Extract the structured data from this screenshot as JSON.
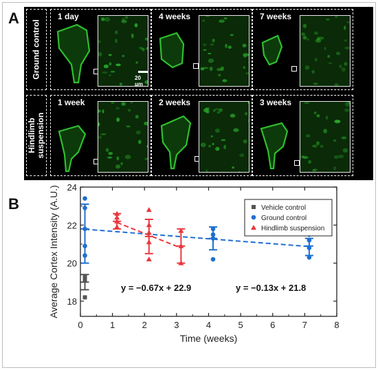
{
  "figure": {
    "panel_a_letter": "A",
    "panel_b_letter": "B",
    "rows": [
      {
        "label_lines": [
          "Ground control"
        ],
        "timepoints": [
          "1 day",
          "4 weeks",
          "7 weeks"
        ]
      },
      {
        "label_lines": [
          "Hindlimb",
          "suspension"
        ],
        "timepoints": [
          "1 week",
          "2 weeks",
          "3 weeks"
        ]
      }
    ],
    "scale_bar_label": "20 μm",
    "colors": {
      "vehicle": "#555555",
      "ground": "#1f6fd1",
      "hindlimb": "#e8383d",
      "tissue": "#2fbf2f"
    }
  },
  "chart_data": {
    "type": "scatter",
    "xlabel": "Time (weeks)",
    "ylabel": "Average Cortex Intensity (A.U.)",
    "xlim": [
      0,
      8
    ],
    "ylim": [
      17.2,
      24
    ],
    "xticks": [
      0,
      1,
      2,
      3,
      4,
      5,
      6,
      7,
      8
    ],
    "yticks": [
      18,
      20,
      22,
      24
    ],
    "grid": false,
    "legend_position": "top-right",
    "series": [
      {
        "name": "Vehicle control",
        "marker": "square",
        "color": "#555555",
        "points": [
          [
            0.14,
            18.2
          ],
          [
            0.14,
            19.1
          ],
          [
            0.14,
            19.3
          ]
        ],
        "error_bars": [
          {
            "x": 0.14,
            "mean": 19.0,
            "low": 18.6,
            "high": 19.4
          }
        ]
      },
      {
        "name": "Ground control",
        "marker": "circle",
        "color": "#1f6fd1",
        "points": [
          [
            0.14,
            23.4
          ],
          [
            0.14,
            22.9
          ],
          [
            0.14,
            21.8
          ],
          [
            0.14,
            20.9
          ],
          [
            0.14,
            20.4
          ],
          [
            4.14,
            21.8
          ],
          [
            4.14,
            21.5
          ],
          [
            4.14,
            21.3
          ],
          [
            4.14,
            20.2
          ],
          [
            7.14,
            21.5
          ],
          [
            7.14,
            21.2
          ],
          [
            7.14,
            20.8
          ],
          [
            7.14,
            20.3
          ]
        ],
        "error_bars": [
          {
            "x": 0.14,
            "mean": 21.8,
            "low": 20.0,
            "high": 23.1
          },
          {
            "x": 4.14,
            "mean": 21.3,
            "low": 20.7,
            "high": 21.9
          },
          {
            "x": 7.14,
            "mean": 20.9,
            "low": 20.4,
            "high": 21.3
          }
        ],
        "fit": {
          "slope": -0.13,
          "intercept": 21.8,
          "x_range": [
            0.14,
            7.14
          ],
          "equation": "y = −0.13x + 21.8"
        }
      },
      {
        "name": "Hindlimb suspension",
        "marker": "triangle",
        "color": "#e8383d",
        "points": [
          [
            1.14,
            22.6
          ],
          [
            1.14,
            22.4
          ],
          [
            1.14,
            22.2
          ],
          [
            1.14,
            21.9
          ],
          [
            2.14,
            22.8
          ],
          [
            2.14,
            22.0
          ],
          [
            2.14,
            21.6
          ],
          [
            2.14,
            21.1
          ],
          [
            2.14,
            20.2
          ],
          [
            3.14,
            21.7
          ],
          [
            3.14,
            20.9
          ],
          [
            3.14,
            20.0
          ]
        ],
        "error_bars": [
          {
            "x": 1.14,
            "mean": 22.2,
            "low": 21.8,
            "high": 22.6
          },
          {
            "x": 2.14,
            "mean": 21.4,
            "low": 20.5,
            "high": 22.3
          },
          {
            "x": 3.14,
            "mean": 20.9,
            "low": 20.0,
            "high": 21.8
          }
        ],
        "fit": {
          "slope": -0.67,
          "intercept": 22.9,
          "x_range": [
            1.14,
            3.14
          ],
          "equation": "y = −0.67x + 22.9"
        }
      }
    ]
  }
}
